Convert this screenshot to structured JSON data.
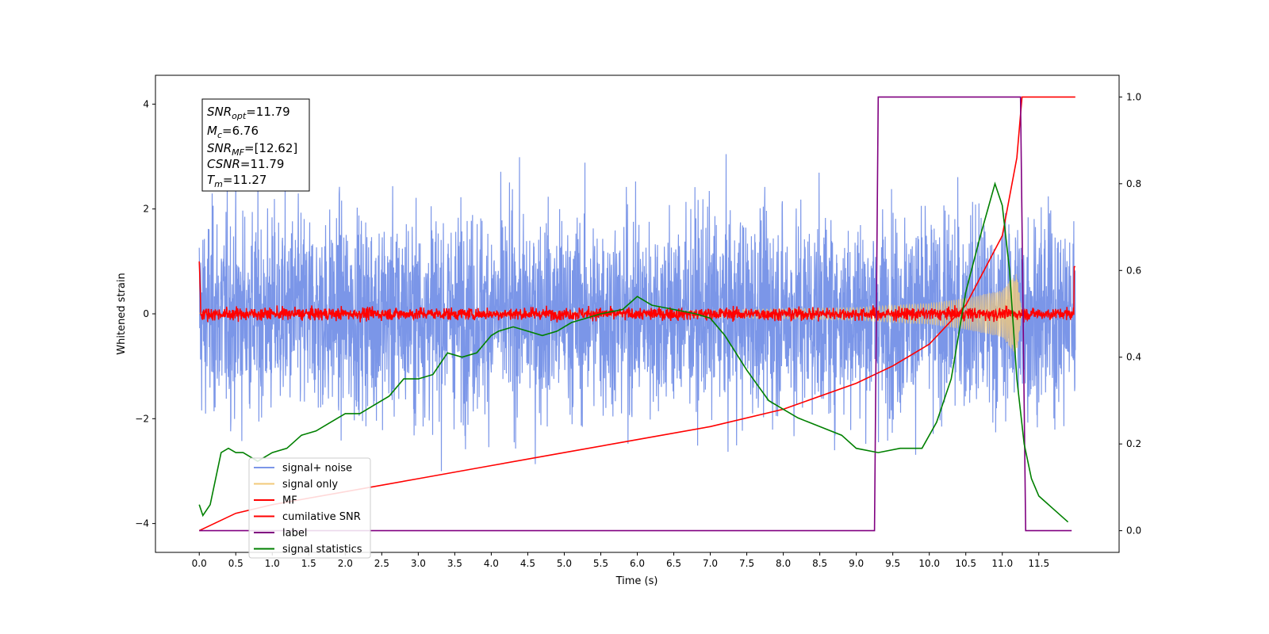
{
  "chart_data": {
    "type": "line",
    "xlabel": "Time (s)",
    "ylabel": "Whitened strain",
    "xlim": [
      -0.6,
      12.6
    ],
    "ylim": [
      -4.55,
      4.55
    ],
    "y2lim": [
      -0.05,
      1.05
    ],
    "x_ticks": [
      "0.0",
      "0.5",
      "1.0",
      "1.5",
      "2.0",
      "2.5",
      "3.0",
      "3.5",
      "4.0",
      "4.5",
      "5.0",
      "5.5",
      "6.0",
      "6.5",
      "7.0",
      "7.5",
      "8.0",
      "8.5",
      "9.0",
      "9.5",
      "10.0",
      "10.5",
      "11.0",
      "11.5"
    ],
    "y_ticks": [
      "4",
      "2",
      "0",
      "−2",
      "−4"
    ],
    "y2_ticks": [
      "1.0",
      "0.8",
      "0.6",
      "0.4",
      "0.2",
      "0.0"
    ],
    "annotation": {
      "snr_opt": {
        "label": "SNR",
        "sub": "opt",
        "value": "=11.79"
      },
      "mc": {
        "label": "M",
        "sub": "c",
        "value": "=6.76"
      },
      "snr_mf": {
        "label": "SNR",
        "sub": "MF",
        "value": "=[12.62]"
      },
      "csnr": {
        "label": "CSNR",
        "sub": "",
        "value": "=11.79"
      },
      "tm": {
        "label": "T",
        "sub": "m",
        "value": "=11.27"
      }
    },
    "legend_position": "lower-left",
    "series": [
      {
        "name": "signal+ noise",
        "color": "#7b96e8",
        "axis": "left",
        "noise_std": 0.95,
        "t_range": [
          0.0,
          12.0
        ]
      },
      {
        "name": "signal only",
        "color": "#f2c97a",
        "axis": "left",
        "envelope": [
          [
            0.0,
            0.02
          ],
          [
            6.0,
            0.05
          ],
          [
            9.0,
            0.12
          ],
          [
            10.0,
            0.2
          ],
          [
            10.5,
            0.3
          ],
          [
            11.0,
            0.45
          ],
          [
            11.2,
            0.8
          ],
          [
            11.27,
            0.0
          ]
        ]
      },
      {
        "name": "MF",
        "color": "#ff0000",
        "axis": "left",
        "noise_std": 0.06,
        "t_range": [
          0.0,
          12.0
        ]
      },
      {
        "name": "cumilative SNR",
        "color": "#ff0000",
        "axis": "right",
        "x": [
          0.0,
          0.5,
          1.0,
          2.0,
          3.0,
          4.0,
          5.0,
          6.0,
          7.0,
          8.0,
          9.0,
          9.5,
          10.0,
          10.5,
          11.0,
          11.2,
          11.27,
          12.0
        ],
        "y": [
          0.0,
          0.04,
          0.06,
          0.09,
          0.12,
          0.15,
          0.18,
          0.21,
          0.24,
          0.28,
          0.34,
          0.38,
          0.43,
          0.52,
          0.68,
          0.86,
          1.0,
          1.0
        ]
      },
      {
        "name": "label",
        "color": "#800080",
        "axis": "right",
        "x": [
          0.0,
          9.25,
          9.3,
          11.25,
          11.32,
          11.95
        ],
        "y": [
          0.0,
          0.0,
          1.0,
          1.0,
          0.0,
          0.0
        ]
      },
      {
        "name": "signal statistics",
        "color": "#008000",
        "axis": "right",
        "x": [
          0.0,
          0.05,
          0.15,
          0.3,
          0.4,
          0.5,
          0.6,
          0.7,
          0.8,
          0.9,
          1.0,
          1.2,
          1.4,
          1.6,
          1.8,
          2.0,
          2.2,
          2.4,
          2.6,
          2.8,
          3.0,
          3.2,
          3.4,
          3.6,
          3.8,
          4.0,
          4.1,
          4.3,
          4.5,
          4.7,
          4.9,
          5.1,
          5.3,
          5.5,
          5.8,
          6.0,
          6.2,
          6.5,
          6.8,
          7.0,
          7.2,
          7.5,
          7.8,
          8.0,
          8.2,
          8.5,
          8.8,
          9.0,
          9.3,
          9.6,
          9.9,
          10.1,
          10.3,
          10.5,
          10.7,
          10.9,
          11.0,
          11.1,
          11.2,
          11.3,
          11.4,
          11.5,
          11.7,
          11.9
        ],
        "y": [
          0.06,
          0.035,
          0.06,
          0.18,
          0.19,
          0.18,
          0.18,
          0.17,
          0.16,
          0.17,
          0.18,
          0.19,
          0.22,
          0.23,
          0.25,
          0.27,
          0.27,
          0.29,
          0.31,
          0.35,
          0.35,
          0.36,
          0.41,
          0.4,
          0.41,
          0.45,
          0.46,
          0.47,
          0.46,
          0.45,
          0.46,
          0.48,
          0.49,
          0.5,
          0.51,
          0.54,
          0.52,
          0.51,
          0.5,
          0.49,
          0.45,
          0.37,
          0.3,
          0.28,
          0.26,
          0.24,
          0.22,
          0.19,
          0.18,
          0.19,
          0.19,
          0.25,
          0.35,
          0.55,
          0.68,
          0.8,
          0.75,
          0.6,
          0.35,
          0.2,
          0.12,
          0.08,
          0.05,
          0.02
        ]
      }
    ]
  }
}
